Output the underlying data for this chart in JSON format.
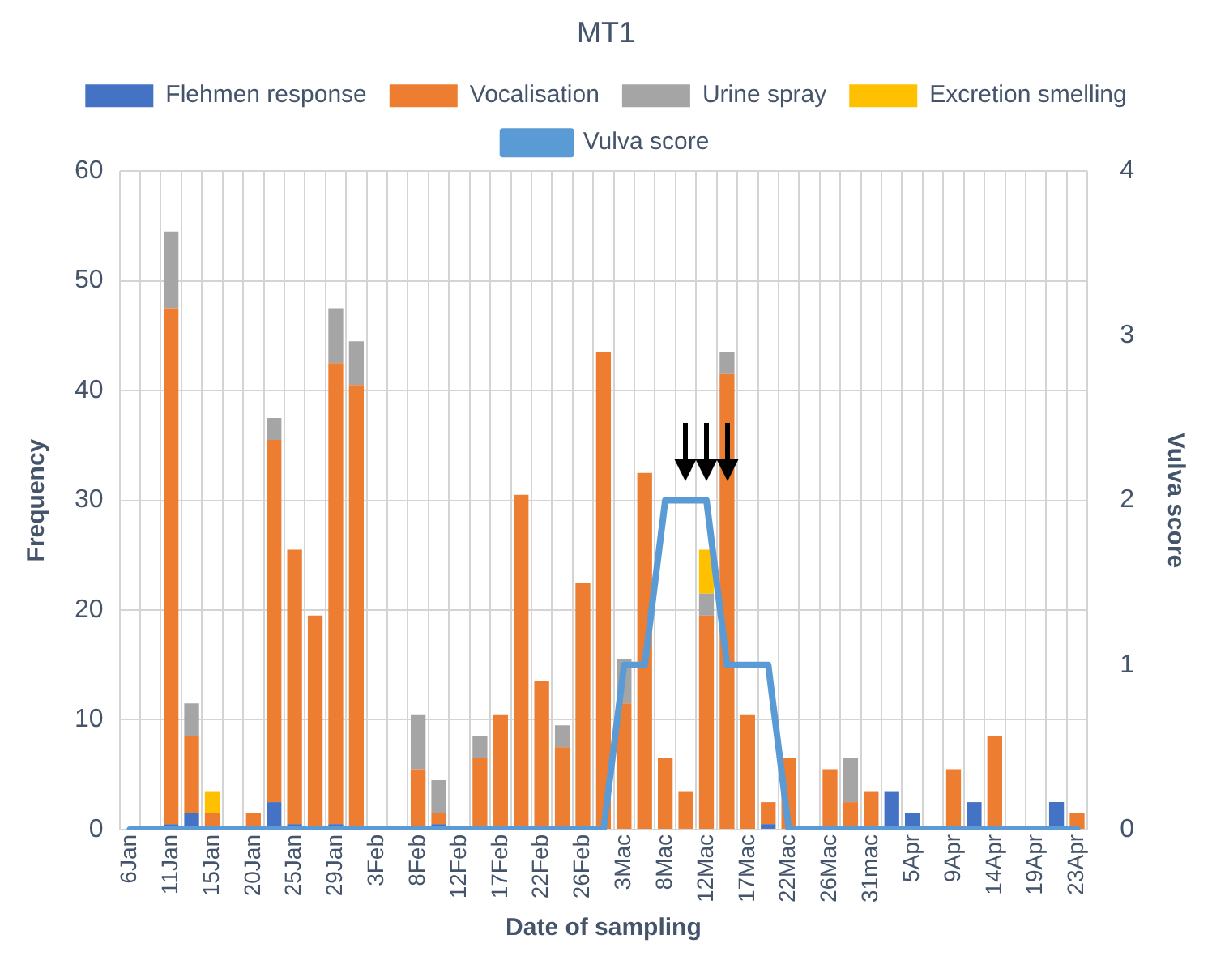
{
  "chart_data": {
    "type": "bar",
    "title": "MT1",
    "xlabel": "Date of sampling",
    "ylabel": "Frequency",
    "y2label": "Vulva score",
    "stacked": true,
    "grid": true,
    "legend": "top",
    "categories": [
      "6Jan",
      null,
      "11Jan",
      null,
      "15Jan",
      null,
      "20Jan",
      null,
      "25Jan",
      null,
      "29Jan",
      null,
      "3Feb",
      null,
      "8Feb",
      null,
      "12Feb",
      null,
      "17Feb",
      null,
      "22Feb",
      null,
      "26Feb",
      null,
      "3Mac",
      null,
      "8Mac",
      null,
      "12Mac",
      null,
      "17Mac",
      null,
      "22Mac",
      null,
      "26Mac",
      null,
      "31mac",
      null,
      "5Apr",
      null,
      "9Apr",
      null,
      "14Apr",
      null,
      "19Apr",
      null,
      "23Apr"
    ],
    "ylim": [
      0,
      60
    ],
    "yticks": [
      0,
      10,
      20,
      30,
      40,
      50,
      60
    ],
    "y2lim": [
      0,
      4
    ],
    "y2ticks": [
      0,
      1,
      2,
      3,
      4
    ],
    "series": [
      {
        "name": "Flehmen response",
        "color": "#4472c4",
        "values": [
          null,
          null,
          0.5,
          1.5,
          null,
          null,
          null,
          2.5,
          0.5,
          null,
          0.5,
          null,
          null,
          null,
          null,
          0.5,
          null,
          null,
          null,
          null,
          null,
          null,
          null,
          null,
          null,
          null,
          null,
          null,
          null,
          null,
          null,
          0.5,
          null,
          null,
          null,
          null,
          null,
          3.5,
          1.5,
          null,
          null,
          2.5,
          null,
          null,
          null,
          2.5,
          null
        ]
      },
      {
        "name": "Vocalisation",
        "color": "#ed7d31",
        "values": [
          null,
          null,
          47,
          7,
          1.5,
          null,
          1.5,
          33,
          25,
          19.5,
          42,
          40.5,
          null,
          null,
          5.5,
          1,
          null,
          6.5,
          10.5,
          30.5,
          13.5,
          7.5,
          22.5,
          43.5,
          11.5,
          32.5,
          6.5,
          3.5,
          19.5,
          41.5,
          10.5,
          2,
          6.5,
          null,
          5.5,
          2.5,
          3.5,
          null,
          null,
          null,
          5.5,
          null,
          8.5,
          null,
          null,
          null,
          1.5
        ]
      },
      {
        "name": "Urine spray",
        "color": "#a5a5a5",
        "values": [
          null,
          null,
          7,
          3,
          null,
          null,
          null,
          2,
          null,
          null,
          5,
          4,
          null,
          null,
          5,
          3,
          null,
          2,
          null,
          null,
          null,
          2,
          null,
          null,
          4,
          null,
          null,
          null,
          2,
          2,
          null,
          null,
          null,
          null,
          null,
          4,
          null,
          null,
          null,
          null,
          null,
          null,
          null,
          null,
          null,
          null,
          null
        ]
      },
      {
        "name": "Excretion smelling",
        "color": "#ffc000",
        "values": [
          null,
          null,
          null,
          null,
          2,
          null,
          null,
          null,
          null,
          null,
          null,
          null,
          null,
          null,
          null,
          null,
          null,
          null,
          null,
          null,
          null,
          null,
          null,
          null,
          null,
          null,
          null,
          null,
          4,
          null,
          null,
          null,
          null,
          null,
          null,
          null,
          null,
          null,
          null,
          null,
          null,
          null,
          null,
          null,
          null,
          null,
          null
        ]
      },
      {
        "name": "Vulva score",
        "type": "line",
        "axis": "y2",
        "color": "#5b9bd5",
        "values": [
          0,
          0,
          0,
          0,
          0,
          0,
          0,
          0,
          0,
          0,
          0,
          0,
          0,
          0,
          0,
          0,
          0,
          0,
          0,
          0,
          0,
          0,
          0,
          0,
          1,
          1,
          2,
          2,
          2,
          1,
          1,
          1,
          0,
          0,
          0,
          0,
          0,
          0,
          0,
          0,
          0,
          0,
          0,
          0,
          0,
          0,
          0
        ]
      }
    ]
  }
}
